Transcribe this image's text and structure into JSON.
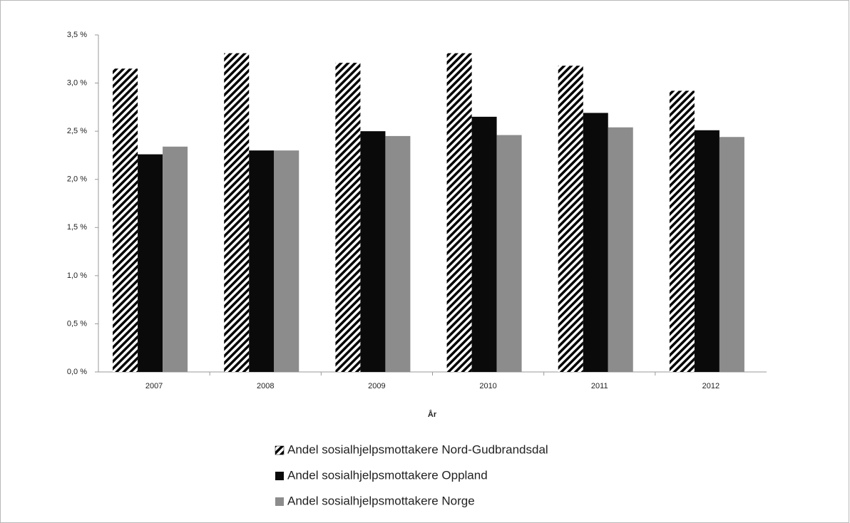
{
  "chart_data": {
    "type": "bar",
    "x_label": "År",
    "categories": [
      "2007",
      "2008",
      "2009",
      "2010",
      "2011",
      "2012"
    ],
    "series": [
      {
        "name": "Andel sosialhjelpsmottakere Nord-Gudbrandsdal",
        "color": "#000000",
        "pattern": "diagonal-hatch",
        "values": [
          3.15,
          3.31,
          3.21,
          3.31,
          3.18,
          2.92
        ]
      },
      {
        "name": "Andel sosialhjelpsmottakere Oppland",
        "color": "#0a0a0a",
        "values": [
          2.26,
          2.3,
          2.5,
          2.65,
          2.69,
          2.51
        ]
      },
      {
        "name": "Andel sosialhjelpsmottakere Norge",
        "color": "#8c8c8c",
        "values": [
          2.34,
          2.3,
          2.45,
          2.46,
          2.54,
          2.44
        ]
      }
    ],
    "ylim": [
      0,
      3.5
    ],
    "yticks": [
      {
        "value": 0,
        "label": "0,0 %"
      },
      {
        "value": 0.5,
        "label": "0,5 %"
      },
      {
        "value": 1,
        "label": "1,0 %"
      },
      {
        "value": 1.5,
        "label": "1,5 %"
      },
      {
        "value": 2,
        "label": "2,0 %"
      },
      {
        "value": 2.5,
        "label": "2,5 %"
      },
      {
        "value": 3,
        "label": "3,0 %"
      },
      {
        "value": 3.5,
        "label": "3,5 %"
      }
    ],
    "grid": false,
    "legend": "bottom"
  }
}
